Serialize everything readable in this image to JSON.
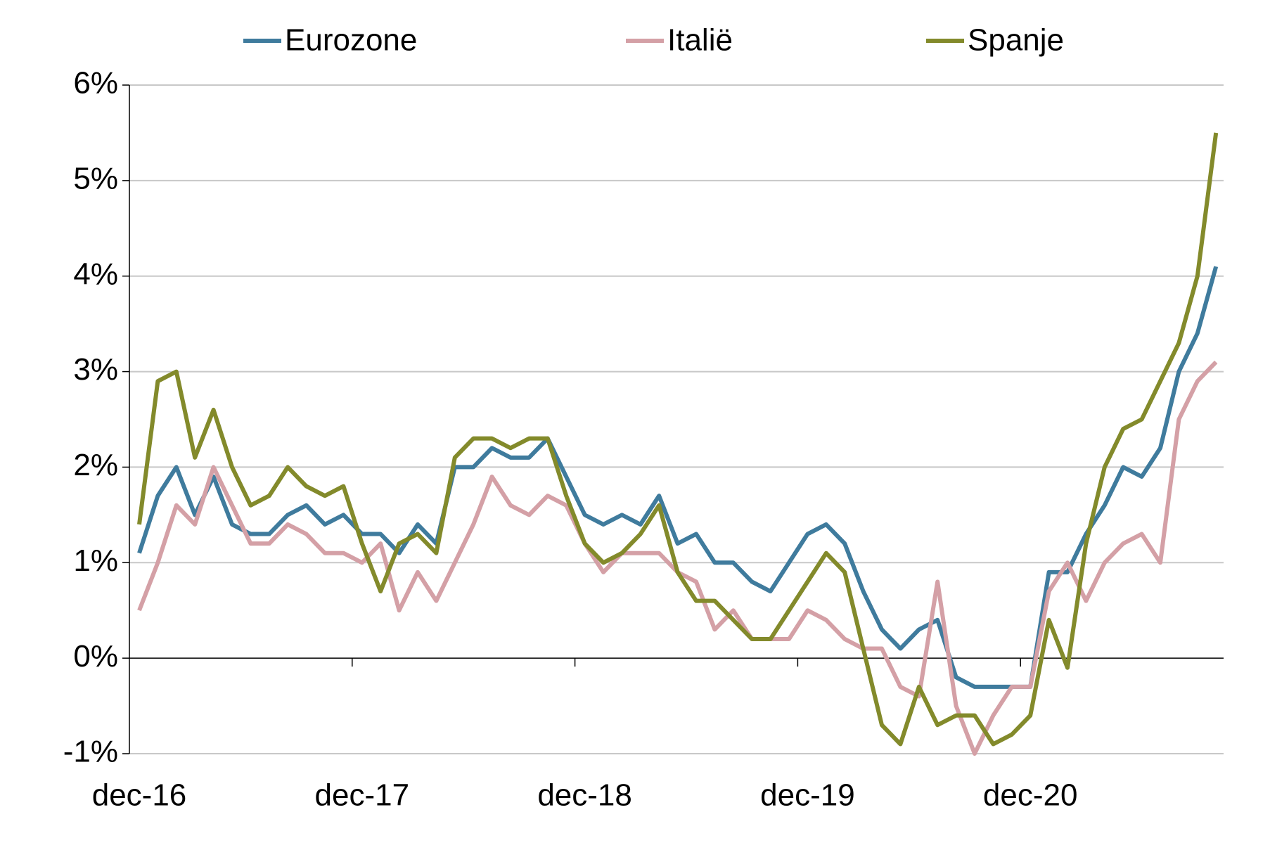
{
  "chart_data": {
    "type": "line",
    "categories": [
      "dec-16",
      null,
      null,
      null,
      null,
      null,
      null,
      null,
      null,
      null,
      null,
      null,
      "dec-17",
      null,
      null,
      null,
      null,
      null,
      null,
      null,
      null,
      null,
      null,
      null,
      "dec-18",
      null,
      null,
      null,
      null,
      null,
      null,
      null,
      null,
      null,
      null,
      null,
      "dec-19",
      null,
      null,
      null,
      null,
      null,
      null,
      null,
      null,
      null,
      null,
      null,
      "dec-20",
      null,
      null,
      null,
      null,
      null,
      null,
      null,
      null,
      null,
      null
    ],
    "series": [
      {
        "name": "Eurozone",
        "color": "#3f7b9d",
        "values": [
          1.1,
          1.7,
          2.0,
          1.5,
          1.9,
          1.4,
          1.3,
          1.3,
          1.5,
          1.6,
          1.4,
          1.5,
          1.3,
          1.3,
          1.1,
          1.4,
          1.2,
          2.0,
          2.0,
          2.2,
          2.1,
          2.1,
          2.3,
          1.9,
          1.5,
          1.4,
          1.5,
          1.4,
          1.7,
          1.2,
          1.3,
          1.0,
          1.0,
          0.8,
          0.7,
          1.0,
          1.3,
          1.4,
          1.2,
          0.7,
          0.3,
          0.1,
          0.3,
          0.4,
          -0.2,
          -0.3,
          -0.3,
          -0.3,
          -0.3,
          0.9,
          0.9,
          1.3,
          1.6,
          2.0,
          1.9,
          2.2,
          3.0,
          3.4,
          4.1
        ]
      },
      {
        "name": "Italië",
        "color": "#d4a0a6",
        "values": [
          0.5,
          1.0,
          1.6,
          1.4,
          2.0,
          1.6,
          1.2,
          1.2,
          1.4,
          1.3,
          1.1,
          1.1,
          1.0,
          1.2,
          0.5,
          0.9,
          0.6,
          1.0,
          1.4,
          1.9,
          1.6,
          1.5,
          1.7,
          1.6,
          1.2,
          0.9,
          1.1,
          1.1,
          1.1,
          0.9,
          0.8,
          0.3,
          0.5,
          0.2,
          0.2,
          0.2,
          0.5,
          0.4,
          0.2,
          0.1,
          0.1,
          -0.3,
          -0.4,
          0.8,
          -0.5,
          -1.0,
          -0.6,
          -0.3,
          -0.3,
          0.7,
          1.0,
          0.6,
          1.0,
          1.2,
          1.3,
          1.0,
          2.5,
          2.9,
          3.1
        ]
      },
      {
        "name": "Spanje",
        "color": "#838a2b",
        "values": [
          1.4,
          2.9,
          3.0,
          2.1,
          2.6,
          2.0,
          1.6,
          1.7,
          2.0,
          1.8,
          1.7,
          1.8,
          1.2,
          0.7,
          1.2,
          1.3,
          1.1,
          2.1,
          2.3,
          2.3,
          2.2,
          2.3,
          2.3,
          1.7,
          1.2,
          1.0,
          1.1,
          1.3,
          1.6,
          0.9,
          0.6,
          0.6,
          0.4,
          0.2,
          0.2,
          0.5,
          0.8,
          1.1,
          0.9,
          0.1,
          -0.7,
          -0.9,
          -0.3,
          -0.7,
          -0.6,
          -0.6,
          -0.9,
          -0.8,
          -0.6,
          0.4,
          -0.1,
          1.2,
          2.0,
          2.4,
          2.5,
          2.9,
          3.3,
          4.0,
          5.5
        ]
      }
    ],
    "ylim": [
      -1,
      6
    ],
    "yticks": [
      {
        "value": -1,
        "label": "-1%"
      },
      {
        "value": 0,
        "label": "0%"
      },
      {
        "value": 1,
        "label": "1%"
      },
      {
        "value": 2,
        "label": "2%"
      },
      {
        "value": 3,
        "label": "3%"
      },
      {
        "value": 4,
        "label": "4%"
      },
      {
        "value": 5,
        "label": "5%"
      },
      {
        "value": 6,
        "label": "6%"
      }
    ],
    "grid": true
  }
}
